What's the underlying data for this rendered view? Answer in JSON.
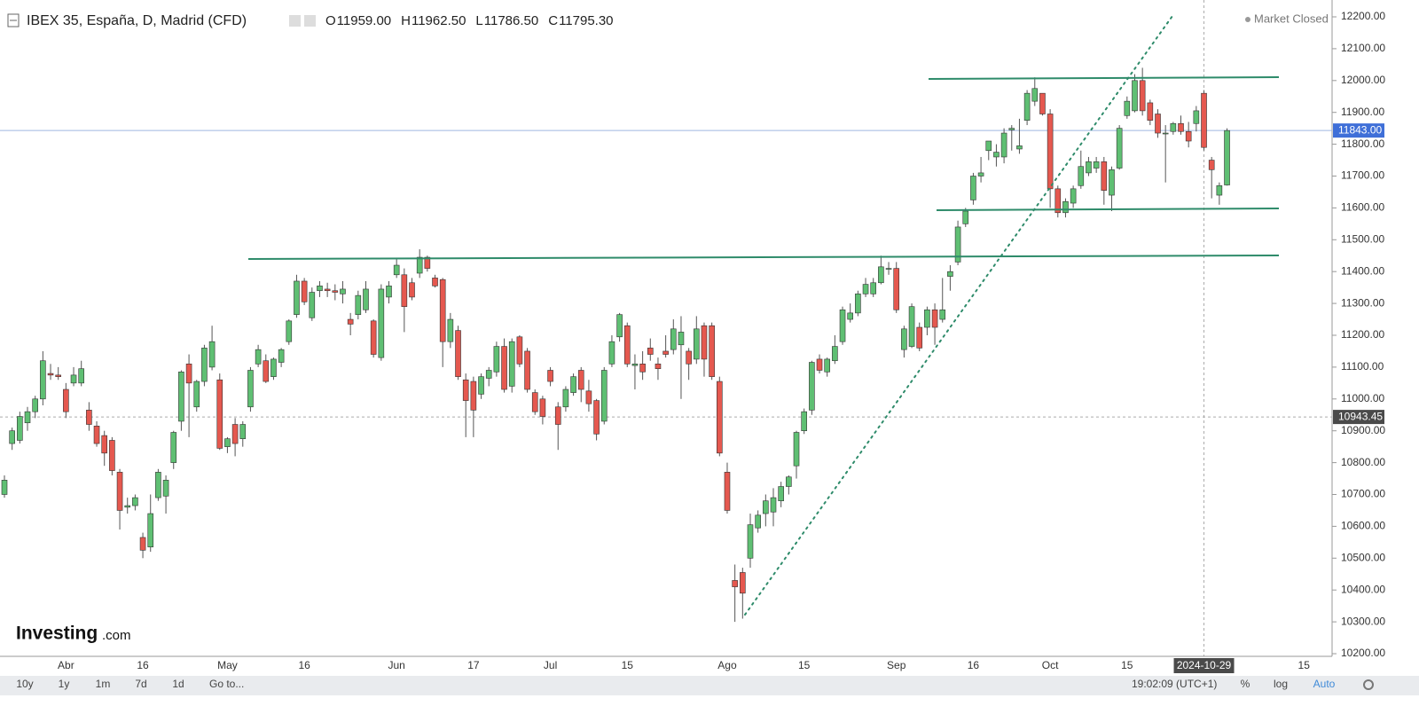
{
  "header": {
    "title": "IBEX 35, España, D, Madrid (CFD)",
    "ohlc": [
      {
        "key": "O",
        "value": "11959.00"
      },
      {
        "key": "H",
        "value": "11962.50"
      },
      {
        "key": "L",
        "value": "11786.50"
      },
      {
        "key": "C",
        "value": "11795.30"
      }
    ],
    "status": "Market Closed"
  },
  "logo": {
    "brand": "Investing",
    "suffix": ".com"
  },
  "toolbar": {
    "ranges": [
      "10y",
      "1y",
      "1m",
      "7d",
      "1d"
    ],
    "goto": "Go to...",
    "time": "19:02:09 (UTC+1)",
    "options": [
      "%",
      "log",
      "Auto"
    ]
  },
  "chart_data": {
    "type": "candlestick",
    "up_color": "#5fbf73",
    "down_color": "#e5584f",
    "categories": [
      null,
      null,
      null,
      null,
      null,
      null,
      null,
      null,
      "Abr",
      null,
      null,
      null,
      null,
      null,
      null,
      null,
      null,
      null,
      "16",
      null,
      null,
      null,
      null,
      null,
      null,
      null,
      null,
      null,
      null,
      "May",
      null,
      null,
      null,
      null,
      null,
      null,
      null,
      null,
      null,
      "16",
      null,
      null,
      null,
      null,
      null,
      null,
      null,
      null,
      null,
      null,
      null,
      "Jun",
      null,
      null,
      null,
      null,
      null,
      null,
      null,
      null,
      null,
      "17",
      null,
      null,
      null,
      null,
      null,
      null,
      null,
      null,
      null,
      "Jul",
      null,
      null,
      null,
      null,
      null,
      null,
      null,
      null,
      null,
      "15",
      null,
      null,
      null,
      null,
      null,
      null,
      null,
      null,
      null,
      null,
      null,
      null,
      "Ago",
      null,
      null,
      null,
      null,
      null,
      null,
      null,
      null,
      null,
      "15",
      null,
      null,
      null,
      null,
      null,
      null,
      null,
      null,
      null,
      null,
      null,
      "Sep",
      null,
      null,
      null,
      null,
      null,
      null,
      null,
      null,
      null,
      "16",
      null,
      null,
      null,
      null,
      null,
      null,
      null,
      null,
      null,
      "Oct",
      null,
      null,
      null,
      null,
      null,
      null,
      null,
      null,
      null,
      "15",
      null,
      null,
      null,
      null,
      null,
      null,
      null,
      null,
      null,
      "2024-10-29",
      null,
      null,
      null,
      null,
      null,
      null,
      null,
      null,
      null,
      null,
      null,
      null,
      "15",
      null,
      null
    ],
    "open": [
      10700,
      10860,
      10870,
      10925,
      10960,
      11000,
      11080,
      11075,
      11030,
      11050,
      11050,
      10965,
      10915,
      10885,
      10870,
      10770,
      10660,
      10665,
      10565,
      10535,
      10690,
      10695,
      10800,
      10930,
      11110,
      10975,
      11055,
      11100,
      11060,
      10850,
      10920,
      10875,
      10975,
      11110,
      11120,
      11070,
      11115,
      11180,
      11265,
      11370,
      11255,
      11340,
      11345,
      11340,
      11330,
      11250,
      11265,
      11280,
      11245,
      11130,
      11320,
      11390,
      11390,
      11365,
      11395,
      11445,
      11380,
      11375,
      11180,
      11215,
      11060,
      11055,
      11015,
      11065,
      11085,
      11165,
      11040,
      11195,
      11150,
      11020,
      11000,
      11090,
      10975,
      10975,
      11020,
      11090,
      11025,
      10995,
      10930,
      11110,
      11195,
      11230,
      11105,
      11110,
      11160,
      11110,
      11150,
      11155,
      11170,
      11150,
      11125,
      11230,
      11230,
      11055,
      10770,
      10430,
      10455,
      10500,
      10595,
      10640,
      10645,
      10680,
      10725,
      10790,
      10900,
      10965,
      11125,
      11085,
      11120,
      11180,
      11250,
      11270,
      11330,
      11330,
      11365,
      11410,
      11410,
      11155,
      11165,
      11225,
      11225,
      11280,
      11250,
      11385,
      11430,
      11550,
      11625,
      11700,
      11780,
      11760,
      11760,
      11845,
      11785,
      11875,
      11935,
      11960,
      11895,
      11660,
      11585,
      11615,
      11670,
      11710,
      11725,
      11745,
      11640,
      11725,
      11890,
      11905,
      12000,
      11930,
      11895,
      11835,
      11840,
      11865,
      11840,
      11865,
      11960,
      11750,
      11640,
      11672,
      null,
      null,
      null,
      null,
      null,
      null,
      null,
      null,
      null,
      null,
      null,
      null
    ],
    "high": [
      10760,
      10910,
      10960,
      10975,
      11010,
      11150,
      11110,
      11100,
      11050,
      11100,
      11120,
      10990,
      10930,
      10900,
      10880,
      10780,
      10690,
      10700,
      10580,
      10700,
      10780,
      10760,
      10900,
      11090,
      11140,
      11060,
      11170,
      11230,
      11080,
      10880,
      10940,
      10930,
      11100,
      11170,
      11140,
      11130,
      11160,
      11250,
      11390,
      11380,
      11350,
      11370,
      11365,
      11360,
      11370,
      11270,
      11340,
      11370,
      11250,
      11360,
      11370,
      11440,
      11410,
      11380,
      11470,
      11450,
      11390,
      11380,
      11270,
      11230,
      11080,
      11070,
      11080,
      11100,
      11180,
      11190,
      11190,
      11200,
      11160,
      11030,
      11010,
      11100,
      10990,
      11040,
      11080,
      11100,
      11060,
      11000,
      11100,
      11200,
      11270,
      11240,
      11140,
      11150,
      11190,
      11130,
      11200,
      11250,
      11260,
      11160,
      11260,
      11240,
      11240,
      11070,
      10800,
      10480,
      10470,
      10640,
      10650,
      10700,
      10720,
      10740,
      10760,
      10900,
      10970,
      11120,
      11140,
      11130,
      11200,
      11290,
      11300,
      11340,
      11380,
      11380,
      11450,
      11430,
      11430,
      11230,
      11300,
      11240,
      11290,
      11300,
      11380,
      11420,
      11560,
      11600,
      11710,
      11760,
      11810,
      11800,
      11850,
      11860,
      11880,
      11970,
      12010,
      11960,
      11910,
      11670,
      11630,
      11670,
      11780,
      11760,
      11760,
      11760,
      11730,
      11860,
      11950,
      12020,
      12040,
      11940,
      11910,
      11860,
      11870,
      11890,
      11870,
      11920,
      11970,
      11760,
      11680,
      11850,
      null,
      null,
      null,
      null,
      null,
      null,
      null,
      null,
      null,
      null,
      null,
      null
    ],
    "low": [
      10690,
      10840,
      10860,
      10900,
      10940,
      10980,
      11060,
      11060,
      10940,
      11040,
      11040,
      10900,
      10850,
      10790,
      10760,
      10590,
      10640,
      10650,
      10500,
      10520,
      10680,
      10640,
      10780,
      10900,
      10880,
      10960,
      11040,
      11090,
      10840,
      10830,
      10820,
      10850,
      10960,
      11100,
      11050,
      11060,
      11100,
      11170,
      11255,
      11295,
      11245,
      11320,
      11320,
      11310,
      11300,
      11200,
      11250,
      11270,
      11130,
      11120,
      11300,
      11380,
      11210,
      11310,
      11380,
      11400,
      11350,
      11100,
      11160,
      11060,
      10880,
      10880,
      11000,
      11040,
      11070,
      11020,
      11020,
      11100,
      11020,
      10950,
      10920,
      11040,
      10840,
      10960,
      11010,
      10990,
      10960,
      10870,
      10920,
      11100,
      11180,
      11100,
      11030,
      11060,
      11120,
      11060,
      11130,
      11140,
      11000,
      11060,
      11110,
      11070,
      11060,
      10820,
      10640,
      10300,
      10310,
      10470,
      10580,
      10600,
      10600,
      10660,
      10700,
      10750,
      10890,
      10950,
      11080,
      11070,
      11110,
      11170,
      11240,
      11260,
      11320,
      11320,
      11360,
      11390,
      11270,
      11130,
      11160,
      11150,
      11200,
      11170,
      11240,
      11340,
      11420,
      11540,
      11610,
      11680,
      11750,
      11730,
      11740,
      11780,
      11770,
      11860,
      11920,
      11890,
      11600,
      11570,
      11570,
      11600,
      11660,
      11700,
      11710,
      11610,
      11590,
      11720,
      11880,
      11900,
      11890,
      11860,
      11820,
      11680,
      11830,
      11830,
      11790,
      11840,
      11780,
      11630,
      11610,
      11670,
      null,
      null,
      null,
      null,
      null,
      null,
      null,
      null,
      null,
      null,
      null,
      null
    ],
    "close": [
      10745,
      10900,
      10945,
      10960,
      11000,
      11120,
      11075,
      11070,
      10960,
      11075,
      11095,
      10920,
      10860,
      10830,
      10775,
      10650,
      10665,
      10690,
      10525,
      10640,
      10770,
      10745,
      10895,
      11085,
      11050,
      11055,
      11160,
      11180,
      10845,
      10875,
      10860,
      10920,
      11090,
      11155,
      11055,
      11125,
      11155,
      11245,
      11370,
      11305,
      11335,
      11355,
      11340,
      11335,
      11345,
      11235,
      11325,
      11345,
      11140,
      11345,
      11355,
      11420,
      11290,
      11320,
      11445,
      11410,
      11355,
      11180,
      11250,
      11070,
      10995,
      10965,
      11070,
      11090,
      11165,
      11030,
      11180,
      11110,
      11030,
      10960,
      10945,
      11055,
      10920,
      11030,
      11070,
      11030,
      10985,
      10890,
      11090,
      11180,
      11265,
      11110,
      11110,
      11085,
      11140,
      11095,
      11140,
      11220,
      11210,
      11110,
      11220,
      11125,
      11070,
      10830,
      10650,
      10410,
      10390,
      10605,
      10635,
      10680,
      10690,
      10725,
      10755,
      10895,
      10960,
      11115,
      11090,
      11125,
      11165,
      11280,
      11270,
      11330,
      11360,
      11365,
      11415,
      11410,
      11280,
      11220,
      11290,
      11160,
      11280,
      11225,
      11280,
      11400,
      11540,
      11590,
      11700,
      11710,
      11810,
      11775,
      11835,
      11850,
      11795,
      11960,
      11975,
      11895,
      11660,
      11585,
      11620,
      11660,
      11730,
      11745,
      11745,
      11655,
      11720,
      11850,
      11935,
      12000,
      11905,
      11875,
      11835,
      11835,
      11865,
      11840,
      11810,
      11905,
      11790,
      11720,
      11670,
      11843,
      null,
      null,
      null,
      null,
      null,
      null,
      null,
      null,
      null,
      null,
      null,
      null
    ],
    "ylim": [
      10200,
      12200
    ],
    "yticks": [
      {
        "value": 10200,
        "label": "10200.00"
      },
      {
        "value": 10300,
        "label": "10300.00"
      },
      {
        "value": 10400,
        "label": "10400.00"
      },
      {
        "value": 10500,
        "label": "10500.00"
      },
      {
        "value": 10600,
        "label": "10600.00"
      },
      {
        "value": 10700,
        "label": "10700.00"
      },
      {
        "value": 10800,
        "label": "10800.00"
      },
      {
        "value": 10900,
        "label": "10900.00"
      },
      {
        "value": 11000,
        "label": "11000.00"
      },
      {
        "value": 11100,
        "label": "11100.00"
      },
      {
        "value": 11200,
        "label": "11200.00"
      },
      {
        "value": 11300,
        "label": "11300.00"
      },
      {
        "value": 11400,
        "label": "11400.00"
      },
      {
        "value": 11500,
        "label": "11500.00"
      },
      {
        "value": 11600,
        "label": "11600.00"
      },
      {
        "value": 11700,
        "label": "11700.00"
      },
      {
        "value": 11800,
        "label": "11800.00"
      },
      {
        "value": 11900,
        "label": "11900.00"
      },
      {
        "value": 12000,
        "label": "12000.00"
      },
      {
        "value": 12100,
        "label": "12100.00"
      },
      {
        "value": 12200,
        "label": "12200.00"
      }
    ],
    "last_price": {
      "value": 11843,
      "label": "11843.00"
    },
    "crosshair": {
      "value": 10943.45,
      "label": "10943.45"
    },
    "grid": false
  }
}
